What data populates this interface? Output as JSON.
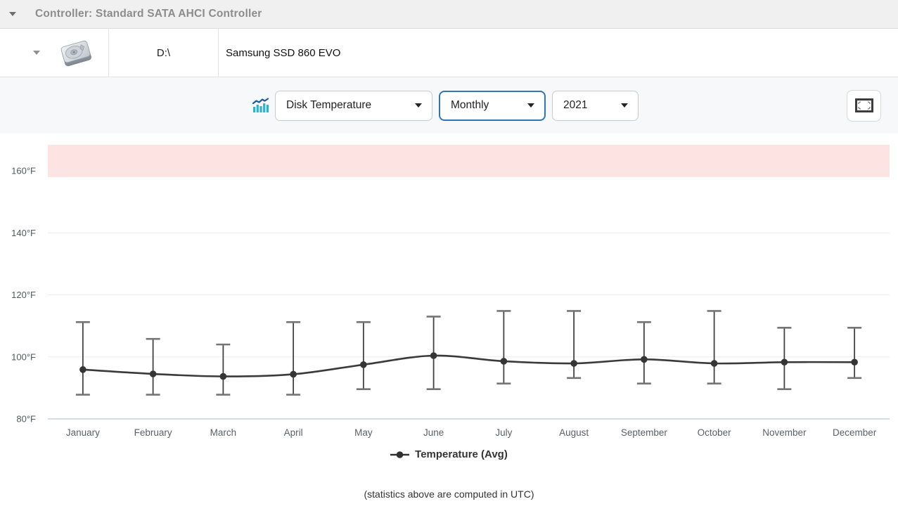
{
  "header": {
    "title": "Controller: Standard SATA AHCI Controller"
  },
  "disk_row": {
    "drive_letter": "D:\\",
    "model": "Samsung SSD 860 EVO"
  },
  "toolbar": {
    "metric_select": "Disk Temperature",
    "period_select": "Monthly",
    "year_select": "2021"
  },
  "chart_data": {
    "type": "line",
    "title": "",
    "categories": [
      "January",
      "February",
      "March",
      "April",
      "May",
      "June",
      "July",
      "August",
      "September",
      "October",
      "November",
      "December"
    ],
    "series": [
      {
        "name": "Temperature (Avg)",
        "values": [
          95.9,
          94.5,
          93.7,
          94.4,
          97.5,
          100.4,
          98.6,
          97.9,
          99.2,
          97.9,
          98.3,
          98.3
        ],
        "min": [
          87.8,
          87.8,
          87.8,
          87.8,
          89.6,
          89.6,
          91.4,
          93.2,
          91.4,
          91.4,
          89.6,
          93.2
        ],
        "max": [
          111.2,
          105.8,
          104.0,
          111.2,
          111.2,
          113.0,
          114.8,
          114.8,
          111.2,
          114.8,
          109.4,
          109.4
        ]
      }
    ],
    "xlabel": "",
    "ylabel": "°F",
    "yticks": [
      80,
      100,
      120,
      140,
      160
    ],
    "ytick_labels": [
      "80°F",
      "100°F",
      "120°F",
      "140°F",
      "160°F"
    ],
    "ylim": [
      80,
      168.4
    ],
    "danger_band": {
      "from": 158,
      "to": 168.4,
      "color": "#fde3e1"
    },
    "grid": true,
    "legend_position": "bottom",
    "footnote": "(statistics above are computed in UTC)"
  },
  "colors": {
    "accent_blue": "#2e75b6",
    "danger_band_pink": "#fde3e1",
    "line_dark": "#3a3a3a",
    "stats_icon_teal": "#29b5ce",
    "stats_icon_blue": "#1c5c9c"
  }
}
